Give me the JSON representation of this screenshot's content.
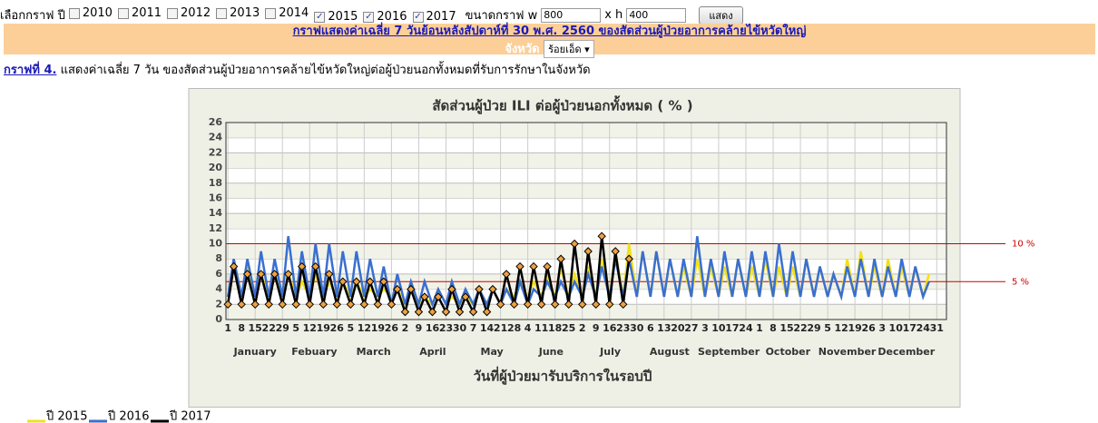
{
  "controls": {
    "year_label": "เลือกกราฟ ปี",
    "years": [
      {
        "label": "2010",
        "checked": false
      },
      {
        "label": "2011",
        "checked": false
      },
      {
        "label": "2012",
        "checked": false
      },
      {
        "label": "2013",
        "checked": false
      },
      {
        "label": "2014",
        "checked": false
      },
      {
        "label": "2015",
        "checked": true
      },
      {
        "label": "2016",
        "checked": true
      },
      {
        "label": "2017",
        "checked": true
      }
    ],
    "size_label": "ขนาดกราฟ w",
    "width": "800",
    "height_label": "x h",
    "height": "400",
    "button": "แสดง"
  },
  "header": {
    "title": "กราฟแสดงค่าเฉลี่ย 7 วันย้อนหลังสัปดาห์ที่ 30   พ.ศ. 2560 ของสัดส่วนผู้ป่วยอาการคล้ายไข้หวัดใหญ่",
    "province_label": "จังหวัด",
    "province": "ร้อยเอ็ด"
  },
  "caption": {
    "link": "กราฟที่ 4.",
    "text": " แสดงค่าเฉลี่ย 7 วัน ของสัดส่วนผู้ป่วยอาการคล้ายไข้หวัดใหญ่ต่อผู้ป่วยนอกทั้งหมดที่รับการรักษาในจังหวัด"
  },
  "chart_data": {
    "type": "line",
    "title": "สัดส่วนผู้ป่วย ILI ต่อผู้ป่วยนอกทั้งหมด ( % )",
    "xlabel": "วันที่ผู้ป่วยมารับบริการในรอบปี",
    "months": [
      "January",
      "Febuary",
      "March",
      "April",
      "May",
      "June",
      "July",
      "August",
      "September",
      "October",
      "November",
      "December"
    ],
    "xlim": [
      0,
      370
    ],
    "xticks": [
      {
        "value": 1,
        "label": "1"
      },
      {
        "value": 8,
        "label": "8"
      },
      {
        "value": 15,
        "label": "15"
      },
      {
        "value": 22,
        "label": "22"
      },
      {
        "value": 29,
        "label": "29"
      },
      {
        "value": 36,
        "label": "5"
      },
      {
        "value": 43,
        "label": "12"
      },
      {
        "value": 50,
        "label": "19"
      },
      {
        "value": 57,
        "label": "26"
      },
      {
        "value": 64,
        "label": "5"
      },
      {
        "value": 71,
        "label": "12"
      },
      {
        "value": 78,
        "label": "19"
      },
      {
        "value": 85,
        "label": "26"
      },
      {
        "value": 92,
        "label": "2"
      },
      {
        "value": 99,
        "label": "9"
      },
      {
        "value": 106,
        "label": "16"
      },
      {
        "value": 113,
        "label": "23"
      },
      {
        "value": 120,
        "label": "30"
      },
      {
        "value": 127,
        "label": "7"
      },
      {
        "value": 134,
        "label": "14"
      },
      {
        "value": 141,
        "label": "21"
      },
      {
        "value": 148,
        "label": "28"
      },
      {
        "value": 155,
        "label": "4"
      },
      {
        "value": 162,
        "label": "11"
      },
      {
        "value": 169,
        "label": "18"
      },
      {
        "value": 176,
        "label": "25"
      },
      {
        "value": 183,
        "label": "2"
      },
      {
        "value": 190,
        "label": "9"
      },
      {
        "value": 197,
        "label": "16"
      },
      {
        "value": 204,
        "label": "23"
      },
      {
        "value": 211,
        "label": "30"
      },
      {
        "value": 218,
        "label": "6"
      },
      {
        "value": 225,
        "label": "13"
      },
      {
        "value": 232,
        "label": "20"
      },
      {
        "value": 239,
        "label": "27"
      },
      {
        "value": 246,
        "label": "3"
      },
      {
        "value": 253,
        "label": "10"
      },
      {
        "value": 260,
        "label": "17"
      },
      {
        "value": 267,
        "label": "24"
      },
      {
        "value": 274,
        "label": "1"
      },
      {
        "value": 281,
        "label": "8"
      },
      {
        "value": 288,
        "label": "15"
      },
      {
        "value": 295,
        "label": "22"
      },
      {
        "value": 302,
        "label": "29"
      },
      {
        "value": 309,
        "label": "5"
      },
      {
        "value": 316,
        "label": "12"
      },
      {
        "value": 323,
        "label": "19"
      },
      {
        "value": 330,
        "label": "26"
      },
      {
        "value": 337,
        "label": "3"
      },
      {
        "value": 344,
        "label": "10"
      },
      {
        "value": 351,
        "label": "17"
      },
      {
        "value": 358,
        "label": "24"
      },
      {
        "value": 365,
        "label": "31"
      }
    ],
    "ylim": [
      0,
      26
    ],
    "yticks": [
      0,
      2,
      4,
      6,
      8,
      10,
      12,
      14,
      16,
      18,
      20,
      22,
      24,
      26
    ],
    "grid": true,
    "reference_lines": [
      {
        "value": 10,
        "label": "10 %",
        "color": "#cc0000"
      },
      {
        "value": 5,
        "label": "5 %",
        "color": "#cc0000"
      }
    ],
    "x": [
      1,
      4,
      8,
      11,
      15,
      18,
      22,
      25,
      29,
      32,
      36,
      39,
      43,
      46,
      50,
      53,
      57,
      60,
      64,
      67,
      71,
      74,
      78,
      81,
      85,
      88,
      92,
      95,
      99,
      102,
      106,
      109,
      113,
      116,
      120,
      123,
      127,
      130,
      134,
      137,
      141,
      144,
      148,
      151,
      155,
      158,
      162,
      165,
      169,
      172,
      176,
      179,
      183,
      186,
      190,
      193,
      197,
      200,
      204,
      207,
      211,
      214,
      218,
      221,
      225,
      228,
      232,
      235,
      239,
      242,
      246,
      249,
      253,
      256,
      260,
      263,
      267,
      270,
      274,
      277,
      281,
      284,
      288,
      291,
      295,
      298,
      302,
      305,
      309,
      312,
      316,
      319,
      323,
      326,
      330,
      333,
      337,
      340,
      344,
      347,
      351,
      354,
      358,
      361
    ],
    "series": [
      {
        "name": "ปี 2015",
        "color": "#f2e01c",
        "markers": false,
        "values": [
          3,
          8,
          3,
          7,
          3,
          6,
          3,
          6,
          3,
          6,
          3,
          5,
          3,
          6,
          3,
          5,
          3,
          5,
          3,
          5,
          3,
          4,
          3,
          4,
          3,
          4,
          2,
          4,
          2,
          3,
          2,
          4,
          2,
          3,
          2,
          3,
          2,
          4,
          2,
          4,
          2,
          4,
          3,
          5,
          3,
          5,
          3,
          6,
          3,
          7,
          3,
          6,
          3,
          7,
          3,
          8,
          3,
          9,
          3,
          10,
          3,
          9,
          3,
          9,
          3,
          8,
          3,
          7,
          3,
          8,
          3,
          7,
          3,
          7,
          3,
          8,
          3,
          7,
          3,
          8,
          3,
          7,
          3,
          7,
          3,
          8,
          3,
          7,
          3,
          6,
          3,
          8,
          3,
          9,
          3,
          7,
          3,
          8,
          3,
          7,
          3,
          7,
          3,
          6
        ]
      },
      {
        "name": "ปี 2016",
        "color": "#3a6fd0",
        "markers": false,
        "values": [
          3,
          8,
          3,
          8,
          3,
          9,
          3,
          8,
          3,
          11,
          3,
          9,
          3,
          10,
          3,
          10,
          3,
          9,
          3,
          9,
          3,
          8,
          3,
          7,
          2,
          6,
          2,
          5,
          2,
          5,
          2,
          4,
          2,
          5,
          2,
          4,
          2,
          4,
          2,
          4,
          2,
          4,
          2,
          5,
          2,
          4,
          3,
          5,
          3,
          5,
          3,
          5,
          3,
          6,
          3,
          7,
          3,
          8,
          3,
          8,
          3,
          9,
          3,
          9,
          3,
          8,
          3,
          8,
          3,
          11,
          3,
          8,
          3,
          9,
          3,
          8,
          3,
          9,
          3,
          9,
          3,
          10,
          3,
          9,
          3,
          8,
          3,
          7,
          3,
          6,
          3,
          7,
          3,
          8,
          3,
          8,
          3,
          7,
          3,
          8,
          3,
          7,
          3,
          5
        ]
      },
      {
        "name": "ปี 2017",
        "color": "#000000",
        "markers": true,
        "values": [
          2,
          7,
          2,
          6,
          2,
          6,
          2,
          6,
          2,
          6,
          2,
          7,
          2,
          7,
          2,
          6,
          2,
          5,
          2,
          5,
          2,
          5,
          2,
          5,
          2,
          4,
          1,
          4,
          1,
          3,
          1,
          3,
          1,
          4,
          1,
          3,
          1,
          4,
          1,
          4,
          2,
          6,
          2,
          7,
          2,
          7,
          2,
          7,
          2,
          8,
          2,
          10,
          2,
          9,
          2,
          11,
          2,
          9,
          2,
          8,
          null,
          null,
          null,
          null,
          null,
          null,
          null,
          null,
          null,
          null,
          null,
          null,
          null,
          null,
          null,
          null,
          null,
          null,
          null,
          null,
          null,
          null,
          null,
          null,
          null,
          null,
          null,
          null,
          null,
          null,
          null,
          null,
          null,
          null,
          null,
          null,
          null,
          null,
          null,
          null,
          null,
          null,
          null,
          null
        ]
      }
    ]
  }
}
